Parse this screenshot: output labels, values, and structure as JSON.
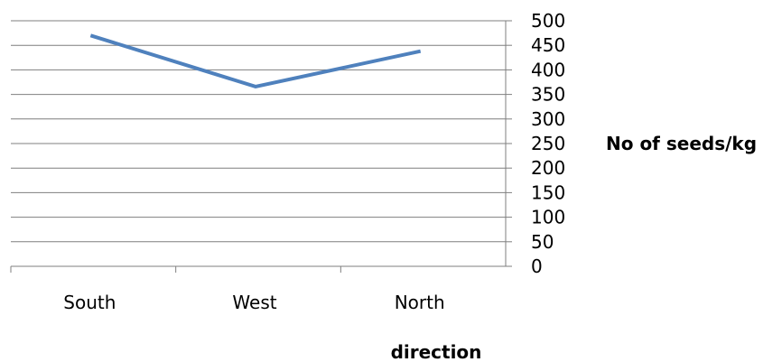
{
  "chart_data": {
    "type": "line",
    "title": "",
    "categories": [
      "South",
      "West",
      "North"
    ],
    "series": [
      {
        "values": [
          470,
          366,
          438
        ],
        "color": "#4F81BD"
      }
    ],
    "xlabel": "direction",
    "ylabel": "No of seeds/kg",
    "ylim": [
      0,
      500
    ],
    "ytick_step": 50,
    "yticks": [
      "0",
      "50",
      "100",
      "150",
      "200",
      "250",
      "300",
      "350",
      "400",
      "450",
      "500"
    ],
    "y_axis_position": "right",
    "grid": true,
    "gridline_color": "#7f7f7f",
    "legend": "none"
  }
}
